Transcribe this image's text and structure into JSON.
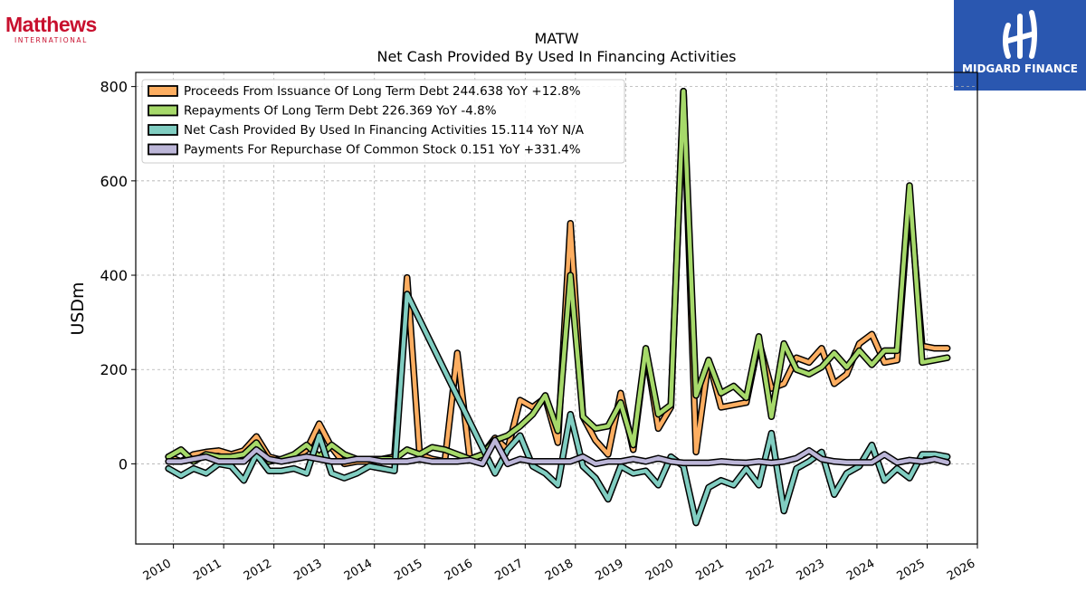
{
  "logos": {
    "left_word": "Matthews",
    "left_sub": "INTERNATIONAL",
    "right_name": "MIDGARD FINANCE"
  },
  "chart_data": {
    "type": "line",
    "title": "MATW",
    "subtitle": "Net Cash Provided By Used In Financing Activities",
    "xlabel": "",
    "ylabel": "USDm",
    "xlim": [
      2009.25,
      2026.0
    ],
    "ylim": [
      -170,
      830
    ],
    "xticks": [
      "2010",
      "2011",
      "2012",
      "2013",
      "2014",
      "2015",
      "2016",
      "2017",
      "2018",
      "2019",
      "2020",
      "2021",
      "2022",
      "2023",
      "2024",
      "2025",
      "2026"
    ],
    "yticks": [
      "0",
      "200",
      "400",
      "600",
      "800"
    ],
    "grid": true,
    "legend_position": "top-left",
    "series": [
      {
        "name": "Proceeds From Issuance Of Long Term Debt  244.638 YoY +12.8%",
        "color": "#fdae61",
        "x": [
          2009.9,
          2010.15,
          2010.4,
          2010.65,
          2010.9,
          2011.15,
          2011.4,
          2011.65,
          2011.9,
          2012.15,
          2012.4,
          2012.65,
          2012.9,
          2013.15,
          2013.4,
          2013.65,
          2013.9,
          2014.15,
          2014.4,
          2014.65,
          2014.9,
          2015.15,
          2015.4,
          2015.65,
          2015.9,
          2016.15,
          2016.4,
          2016.65,
          2016.9,
          2017.15,
          2017.4,
          2017.65,
          2017.9,
          2018.15,
          2018.4,
          2018.65,
          2018.9,
          2019.15,
          2019.4,
          2019.65,
          2019.9,
          2020.15,
          2020.4,
          2020.65,
          2020.9,
          2021.15,
          2021.4,
          2021.65,
          2021.9,
          2022.15,
          2022.4,
          2022.65,
          2022.9,
          2023.15,
          2023.4,
          2023.65,
          2023.9,
          2024.15,
          2024.4,
          2024.65,
          2024.9,
          2025.15,
          2025.4
        ],
        "values": [
          15,
          5,
          20,
          25,
          28,
          20,
          28,
          58,
          15,
          8,
          10,
          30,
          85,
          35,
          0,
          5,
          5,
          10,
          15,
          395,
          20,
          10,
          5,
          235,
          10,
          20,
          55,
          30,
          135,
          120,
          140,
          45,
          510,
          100,
          50,
          20,
          150,
          30,
          240,
          75,
          120,
          790,
          25,
          220,
          120,
          125,
          130,
          260,
          160,
          170,
          225,
          215,
          245,
          170,
          190,
          255,
          275,
          215,
          220,
          565,
          250,
          245,
          245
        ]
      },
      {
        "name": "Repayments Of Long Term Debt  226.369 YoY -4.8%",
        "color": "#a6d96a",
        "x": [
          2009.9,
          2010.15,
          2010.4,
          2010.65,
          2010.9,
          2011.15,
          2011.4,
          2011.65,
          2011.9,
          2012.15,
          2012.4,
          2012.65,
          2012.9,
          2013.15,
          2013.4,
          2013.65,
          2013.9,
          2014.15,
          2014.4,
          2014.65,
          2014.9,
          2015.15,
          2015.4,
          2015.65,
          2015.9,
          2016.15,
          2016.4,
          2016.65,
          2016.9,
          2017.15,
          2017.4,
          2017.65,
          2017.9,
          2018.15,
          2018.4,
          2018.65,
          2018.9,
          2019.15,
          2019.4,
          2019.65,
          2019.9,
          2020.15,
          2020.4,
          2020.65,
          2020.9,
          2021.15,
          2021.4,
          2021.65,
          2021.9,
          2022.15,
          2022.4,
          2022.65,
          2022.9,
          2023.15,
          2023.4,
          2023.65,
          2023.9,
          2024.15,
          2024.4,
          2024.65,
          2024.9,
          2025.15,
          2025.4
        ],
        "values": [
          15,
          30,
          5,
          20,
          15,
          15,
          20,
          45,
          5,
          10,
          20,
          40,
          15,
          40,
          20,
          10,
          10,
          10,
          10,
          30,
          20,
          35,
          30,
          20,
          10,
          20,
          50,
          60,
          80,
          105,
          145,
          70,
          400,
          100,
          75,
          80,
          130,
          40,
          245,
          105,
          125,
          790,
          145,
          220,
          150,
          165,
          140,
          270,
          100,
          255,
          200,
          190,
          205,
          235,
          205,
          240,
          210,
          240,
          240,
          590,
          215,
          220,
          225
        ]
      },
      {
        "name": "Net Cash Provided By Used In Financing Activities  15.114 YoY N/A",
        "color": "#80cdc1",
        "x": [
          2009.9,
          2010.15,
          2010.4,
          2010.65,
          2010.9,
          2011.15,
          2011.4,
          2011.65,
          2011.9,
          2012.15,
          2012.4,
          2012.65,
          2012.9,
          2013.15,
          2013.4,
          2013.65,
          2013.9,
          2014.15,
          2014.4,
          2014.65,
          2016.4,
          2016.65,
          2016.9,
          2017.15,
          2017.4,
          2017.65,
          2017.9,
          2018.15,
          2018.4,
          2018.65,
          2018.9,
          2019.15,
          2019.4,
          2019.65,
          2019.9,
          2020.15,
          2020.4,
          2020.65,
          2020.9,
          2021.15,
          2021.4,
          2021.65,
          2021.9,
          2022.15,
          2022.4,
          2022.65,
          2022.9,
          2023.15,
          2023.4,
          2023.65,
          2023.9,
          2024.15,
          2024.4,
          2024.65,
          2024.9,
          2025.15,
          2025.4
        ],
        "values": [
          -10,
          -25,
          -10,
          -20,
          0,
          -5,
          -35,
          20,
          -15,
          -15,
          -10,
          -20,
          60,
          -20,
          -30,
          -20,
          -5,
          -10,
          -15,
          360,
          -20,
          30,
          60,
          -5,
          -20,
          -45,
          105,
          -5,
          -30,
          -75,
          -5,
          -20,
          -15,
          -45,
          15,
          -5,
          -125,
          -50,
          -35,
          -45,
          -10,
          -45,
          65,
          -100,
          -10,
          5,
          25,
          -65,
          -20,
          -5,
          40,
          -35,
          -10,
          -30,
          20,
          20,
          15
        ]
      },
      {
        "name": "Payments For Repurchase Of Common Stock  0.151 YoY +331.4%",
        "color": "#bcb6d8",
        "x": [
          2009.9,
          2010.15,
          2010.4,
          2010.65,
          2010.9,
          2011.15,
          2011.4,
          2011.65,
          2011.9,
          2012.15,
          2012.4,
          2012.65,
          2012.9,
          2013.15,
          2013.4,
          2013.65,
          2013.9,
          2014.15,
          2014.4,
          2014.65,
          2014.9,
          2015.15,
          2015.4,
          2015.65,
          2015.9,
          2016.15,
          2016.4,
          2016.65,
          2016.9,
          2017.15,
          2017.4,
          2017.65,
          2017.9,
          2018.15,
          2018.4,
          2018.65,
          2018.9,
          2019.15,
          2019.4,
          2019.65,
          2019.9,
          2020.15,
          2020.4,
          2020.65,
          2020.9,
          2021.15,
          2021.4,
          2021.65,
          2021.9,
          2022.15,
          2022.4,
          2022.65,
          2022.9,
          2023.15,
          2023.4,
          2023.65,
          2023.9,
          2024.15,
          2024.4,
          2024.65,
          2024.9,
          2025.15,
          2025.4
        ],
        "values": [
          5,
          5,
          10,
          15,
          5,
          5,
          5,
          30,
          10,
          5,
          10,
          15,
          10,
          5,
          5,
          10,
          10,
          5,
          5,
          5,
          10,
          5,
          5,
          5,
          8,
          0,
          50,
          0,
          10,
          5,
          5,
          5,
          5,
          15,
          0,
          5,
          5,
          10,
          5,
          12,
          5,
          2,
          2,
          2,
          5,
          3,
          2,
          5,
          2,
          5,
          12,
          28,
          10,
          5,
          3,
          3,
          3,
          20,
          3,
          8,
          5,
          10,
          3
        ]
      }
    ]
  }
}
